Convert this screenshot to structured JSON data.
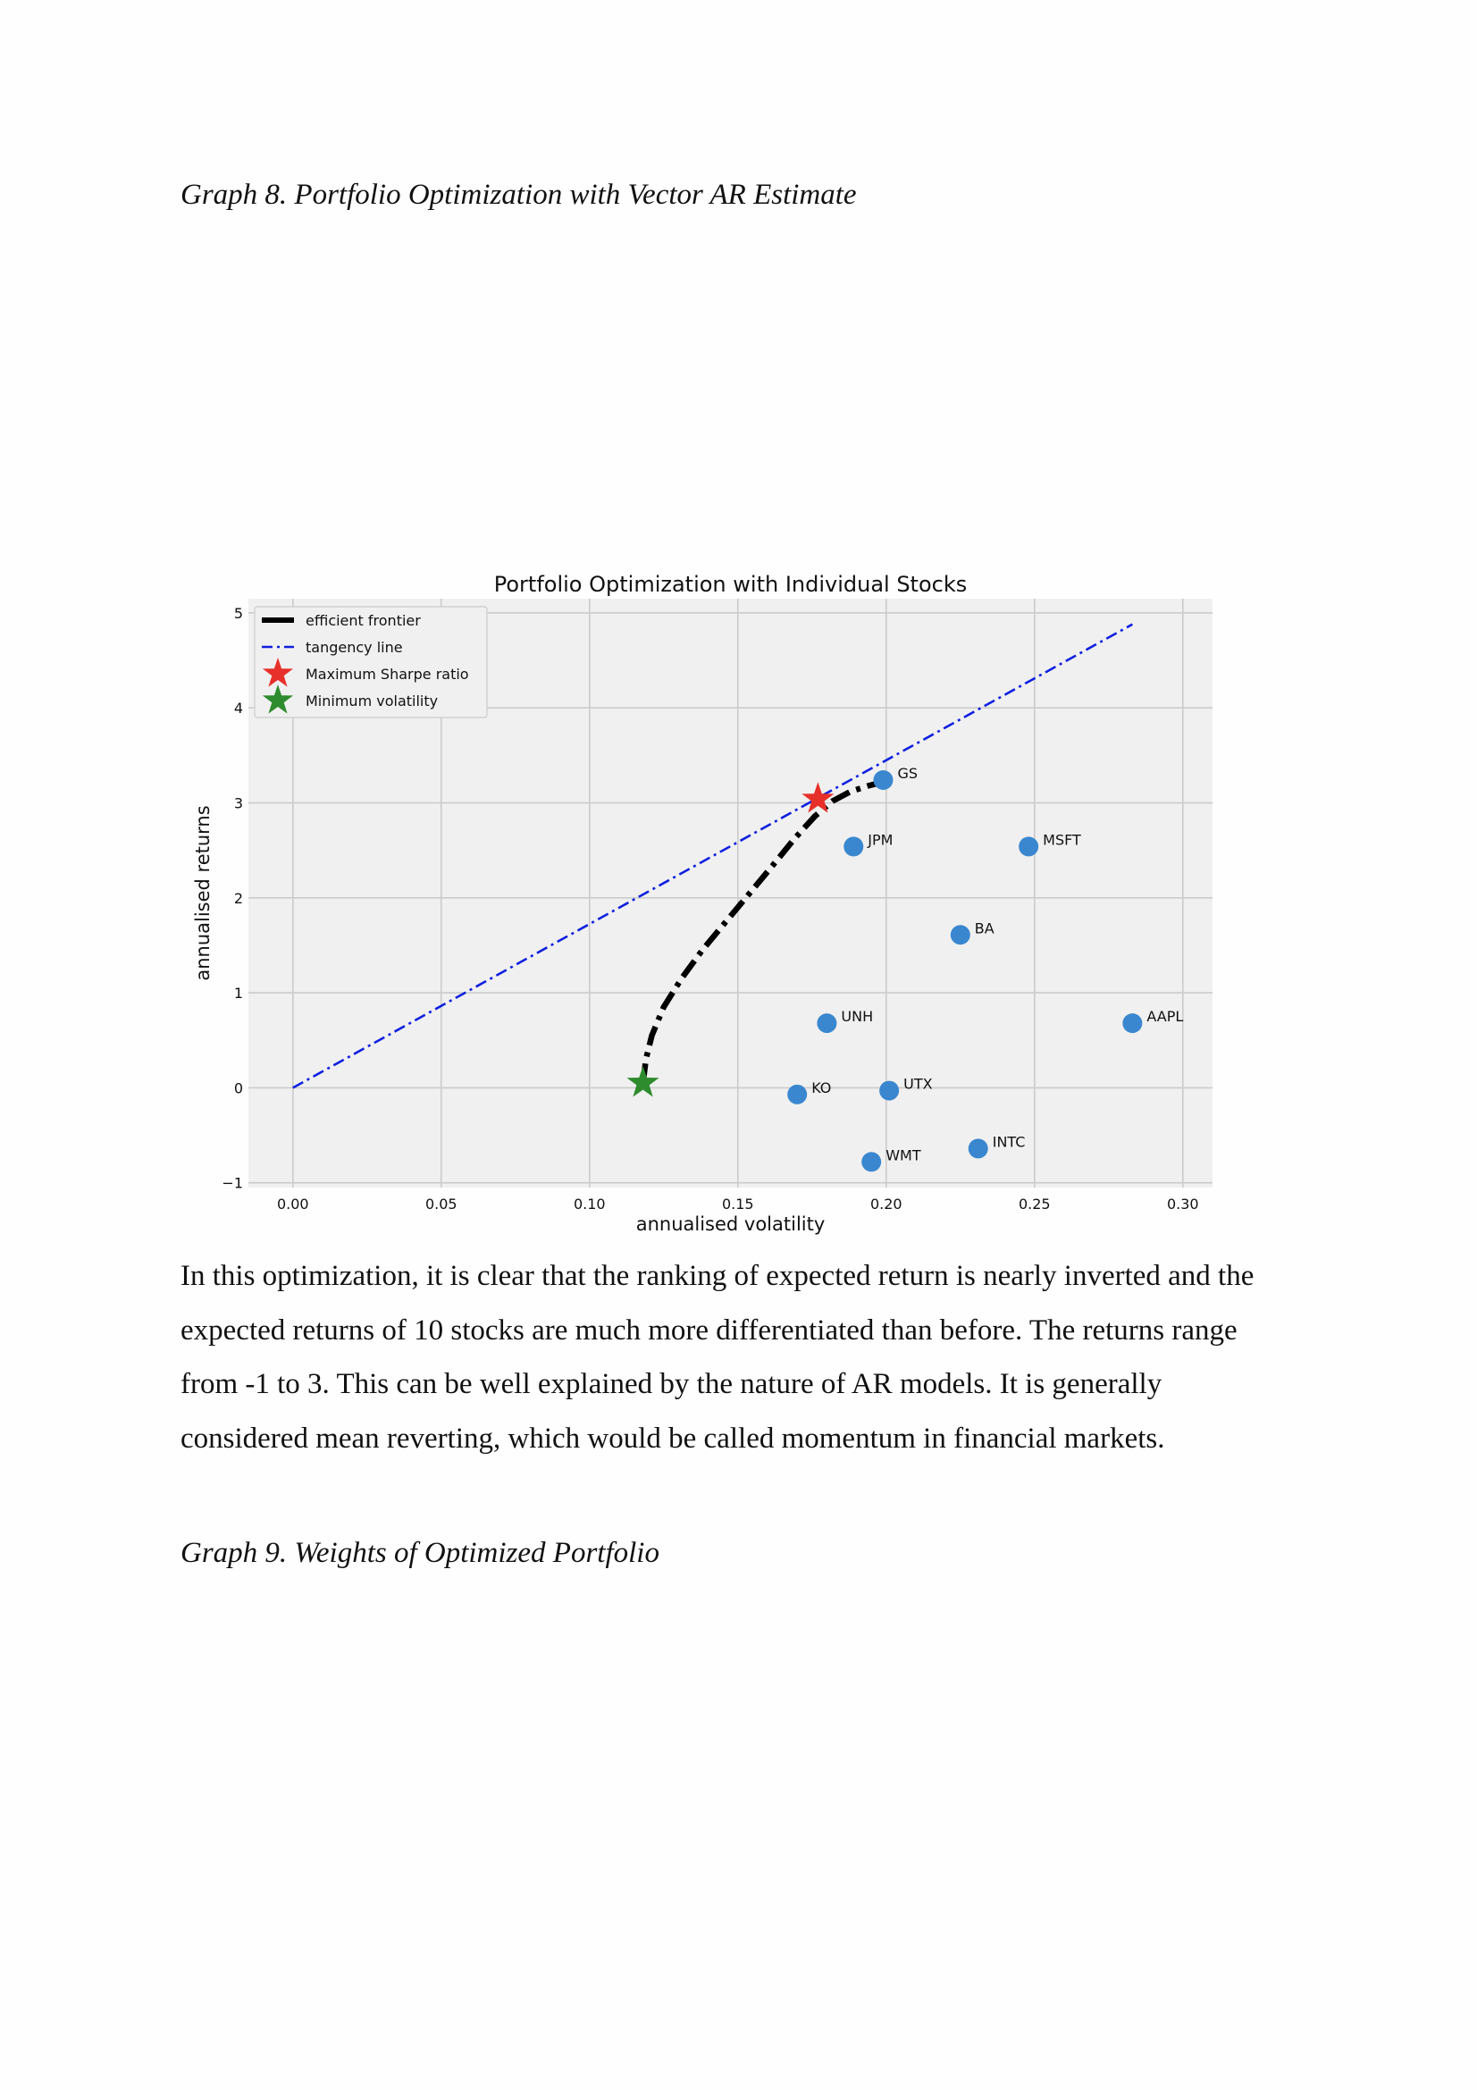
{
  "captions": {
    "graph8": "Graph 8. Portfolio Optimization with Vector AR Estimate",
    "graph9": "Graph 9. Weights of Optimized Portfolio"
  },
  "paragraph_lines": [
    "In this optimization, it is clear that the ranking of expected return is nearly inverted and the",
    "expected returns of 10 stocks are much more differentiated than before. The returns range",
    "from -1 to 3. This can be well explained by the nature of AR models. It is generally",
    "considered mean reverting, which would be called momentum in financial markets."
  ],
  "colors": {
    "plot_background": "#f0f0f0",
    "grid": "#cbcbcb",
    "stock_points": "#3a87d0",
    "frontier": "#000000",
    "tangency": "#1020e0",
    "max_sharpe_star": "#e8302a",
    "min_vol_star": "#2e8b2e"
  },
  "chart_data": {
    "type": "scatter",
    "title": "Portfolio Optimization with Individual Stocks",
    "xlabel": "annualised volatility",
    "ylabel": "annualised returns",
    "xlim": [
      -0.015,
      0.31
    ],
    "ylim": [
      -1.05,
      5.15
    ],
    "xticks": [
      0.0,
      0.05,
      0.1,
      0.15,
      0.2,
      0.25,
      0.3
    ],
    "xtick_labels": [
      "0.00",
      "0.05",
      "0.10",
      "0.15",
      "0.20",
      "0.25",
      "0.30"
    ],
    "yticks": [
      -1,
      0,
      1,
      2,
      3,
      4,
      5
    ],
    "ytick_labels": [
      "−1",
      "0",
      "1",
      "2",
      "3",
      "4",
      "5"
    ],
    "grid": true,
    "legend_position": "top-left",
    "legend": [
      {
        "label": "efficient frontier",
        "kind": "thick-dashdot"
      },
      {
        "label": "tangency line",
        "kind": "dashdot"
      },
      {
        "label": "Maximum Sharpe ratio",
        "kind": "red-star"
      },
      {
        "label": "Minimum volatility",
        "kind": "green-star"
      }
    ],
    "stocks": [
      {
        "name": "GS",
        "x": 0.199,
        "y": 3.24
      },
      {
        "name": "JPM",
        "x": 0.189,
        "y": 2.54
      },
      {
        "name": "MSFT",
        "x": 0.248,
        "y": 2.54
      },
      {
        "name": "BA",
        "x": 0.225,
        "y": 1.61
      },
      {
        "name": "UNH",
        "x": 0.18,
        "y": 0.68
      },
      {
        "name": "AAPL",
        "x": 0.283,
        "y": 0.68
      },
      {
        "name": "KO",
        "x": 0.17,
        "y": -0.07
      },
      {
        "name": "UTX",
        "x": 0.201,
        "y": -0.03
      },
      {
        "name": "INTC",
        "x": 0.231,
        "y": -0.64
      },
      {
        "name": "WMT",
        "x": 0.195,
        "y": -0.78
      }
    ],
    "efficient_frontier": [
      {
        "x": 0.118,
        "y": 0.05
      },
      {
        "x": 0.119,
        "y": 0.3
      },
      {
        "x": 0.121,
        "y": 0.55
      },
      {
        "x": 0.125,
        "y": 0.85
      },
      {
        "x": 0.131,
        "y": 1.15
      },
      {
        "x": 0.138,
        "y": 1.45
      },
      {
        "x": 0.146,
        "y": 1.75
      },
      {
        "x": 0.154,
        "y": 2.05
      },
      {
        "x": 0.162,
        "y": 2.35
      },
      {
        "x": 0.169,
        "y": 2.62
      },
      {
        "x": 0.176,
        "y": 2.86
      },
      {
        "x": 0.182,
        "y": 3.02
      },
      {
        "x": 0.188,
        "y": 3.12
      },
      {
        "x": 0.194,
        "y": 3.18
      },
      {
        "x": 0.199,
        "y": 3.22
      }
    ],
    "tangency_line": [
      {
        "x": 0.0,
        "y": 0.0
      },
      {
        "x": 0.283,
        "y": 4.88
      }
    ],
    "max_sharpe": {
      "x": 0.177,
      "y": 3.04
    },
    "min_volatility": {
      "x": 0.118,
      "y": 0.05
    }
  }
}
